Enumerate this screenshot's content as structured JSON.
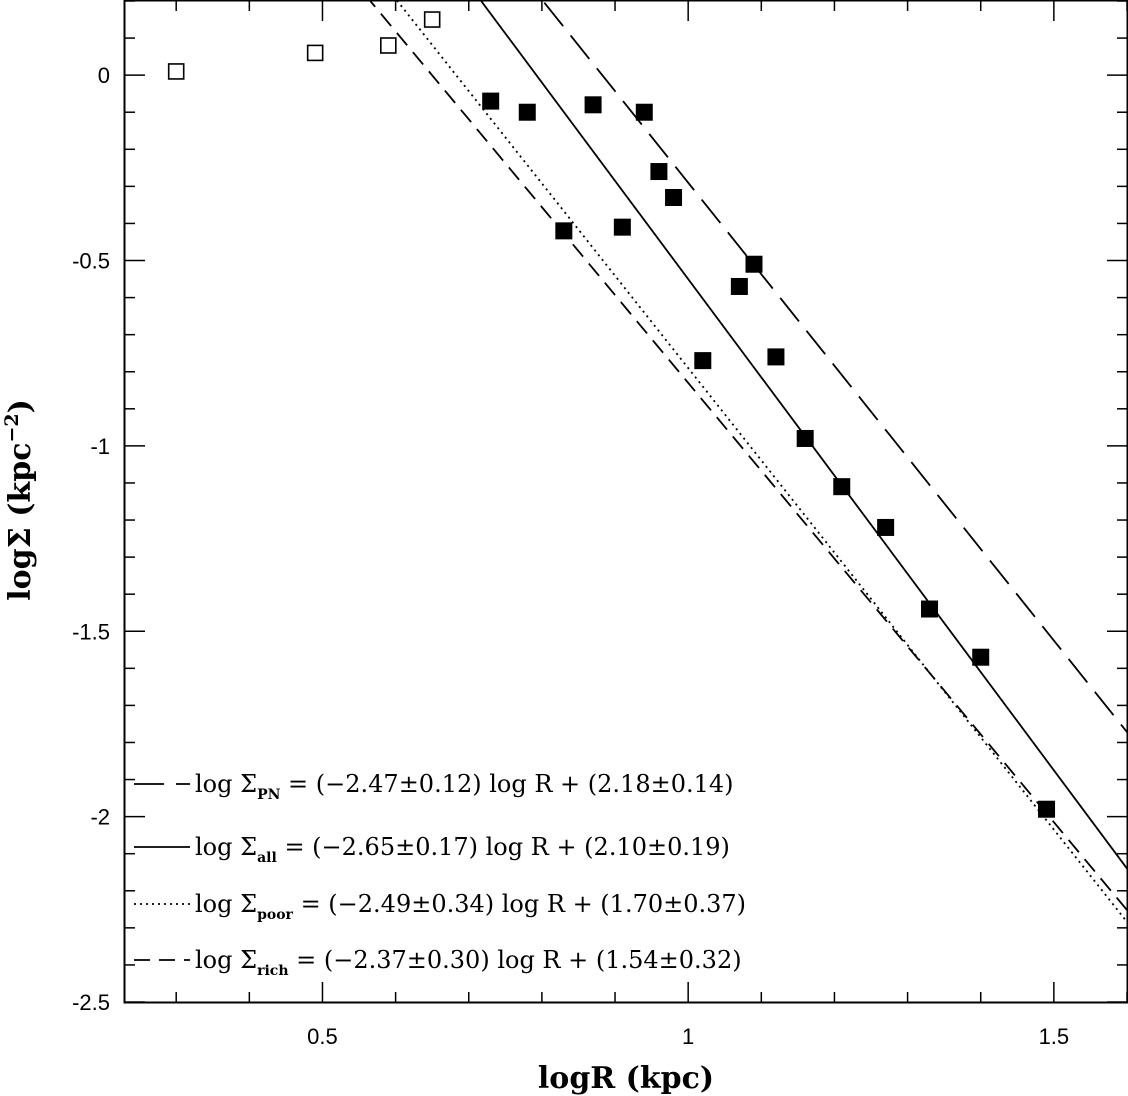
{
  "chart_data": {
    "type": "scatter",
    "xlabel": "logR (kpc)",
    "ylabel_main": "logΣ (kpc",
    "ylabel_exp": "−2",
    "ylabel_close": ")",
    "xlim": [
      0.23,
      1.6
    ],
    "ylim": [
      -2.5,
      0.2
    ],
    "x_ticks": [
      {
        "value": 0.5,
        "label": "0.5"
      },
      {
        "value": 1.0,
        "label": "1"
      },
      {
        "value": 1.5,
        "label": "1.5"
      }
    ],
    "y_ticks": [
      {
        "value": 0,
        "label": "0"
      },
      {
        "value": -0.5,
        "label": "-0.5"
      },
      {
        "value": -1,
        "label": "-1"
      },
      {
        "value": -1.5,
        "label": "-1.5"
      },
      {
        "value": -2,
        "label": "-2"
      },
      {
        "value": -2.5,
        "label": "-2.5"
      }
    ],
    "x_minor_step": 0.1,
    "y_minor_step": 0.1,
    "series": [
      {
        "marker": "open-square",
        "points": [
          {
            "x": 0.3,
            "y": 0.01
          },
          {
            "x": 0.49,
            "y": 0.06
          },
          {
            "x": 0.59,
            "y": 0.08
          },
          {
            "x": 0.65,
            "y": 0.15
          }
        ]
      },
      {
        "marker": "filled-square",
        "points": [
          {
            "x": 0.73,
            "y": -0.07
          },
          {
            "x": 0.78,
            "y": -0.1
          },
          {
            "x": 0.87,
            "y": -0.08
          },
          {
            "x": 0.94,
            "y": -0.1
          },
          {
            "x": 0.96,
            "y": -0.26
          },
          {
            "x": 0.98,
            "y": -0.33
          },
          {
            "x": 0.83,
            "y": -0.42
          },
          {
            "x": 0.91,
            "y": -0.41
          },
          {
            "x": 1.09,
            "y": -0.51
          },
          {
            "x": 1.07,
            "y": -0.57
          },
          {
            "x": 1.02,
            "y": -0.77
          },
          {
            "x": 1.12,
            "y": -0.76
          },
          {
            "x": 1.16,
            "y": -0.98
          },
          {
            "x": 1.21,
            "y": -1.11
          },
          {
            "x": 1.27,
            "y": -1.22
          },
          {
            "x": 1.33,
            "y": -1.44
          },
          {
            "x": 1.4,
            "y": -1.57
          },
          {
            "x": 1.49,
            "y": -1.98
          }
        ]
      }
    ],
    "fits": [
      {
        "slope": -2.47,
        "intercept": 2.18,
        "style": "long-dash",
        "symbol": "PN",
        "label_pre": "log Σ",
        "label_post": " = (−2.47±0.12) log R + (2.18±0.14)"
      },
      {
        "slope": -2.65,
        "intercept": 2.1,
        "style": "solid",
        "symbol": "all",
        "label_pre": "log Σ",
        "label_post": " = (−2.65±0.17) log R + (2.10±0.19)"
      },
      {
        "slope": -2.49,
        "intercept": 1.7,
        "style": "dotted",
        "symbol": "poor",
        "label_pre": "log Σ",
        "label_post": " = (−2.49±0.34) log R + (1.70±0.37)"
      },
      {
        "slope": -2.37,
        "intercept": 1.54,
        "style": "dashed",
        "symbol": "rich",
        "label_pre": "log Σ",
        "label_post": " = (−2.37±0.30) log R + (1.54±0.32)"
      }
    ],
    "legend_position": "bottom-left",
    "grid": false
  }
}
